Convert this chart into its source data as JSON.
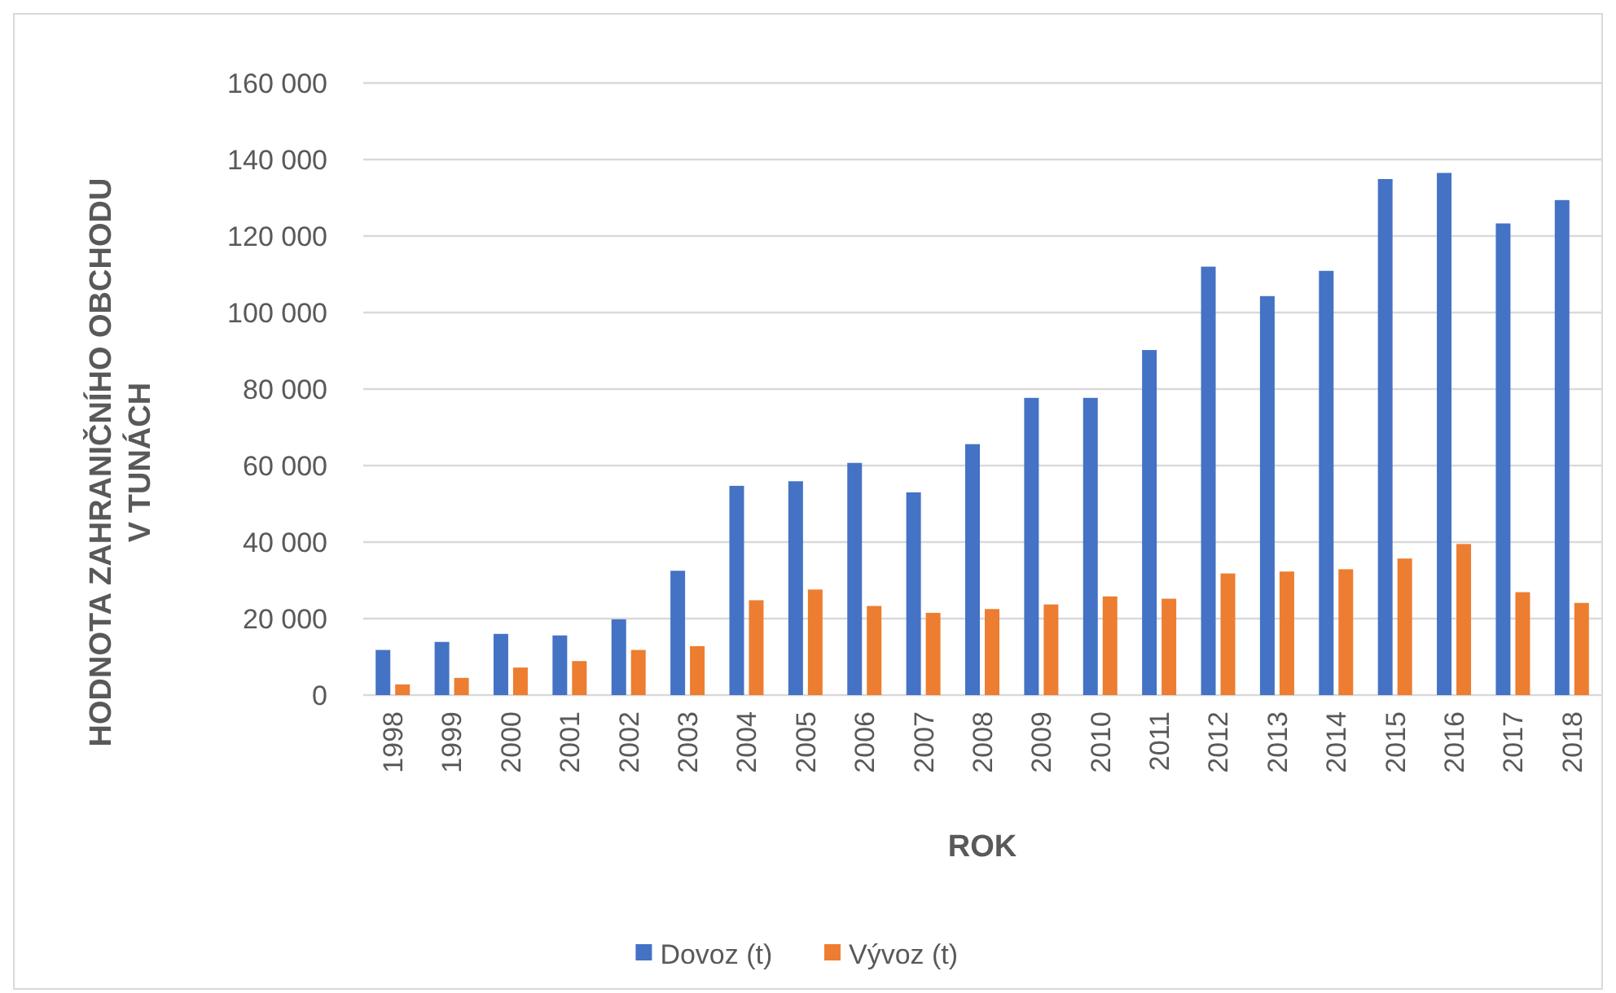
{
  "chart_data": {
    "type": "bar",
    "xlabel": "ROK",
    "ylabel": "HODNOTA ZAHRANIČNÍHO OBCHODU\nV TUNÁCH",
    "categories": [
      "1998",
      "1999",
      "2000",
      "2001",
      "2002",
      "2003",
      "2004",
      "2005",
      "2006",
      "2007",
      "2008",
      "2009",
      "2010",
      "2011",
      "2012",
      "2013",
      "2014",
      "2015",
      "2016",
      "2017",
      "2018"
    ],
    "series": [
      {
        "name": "Dovoz (t)",
        "color": "#4472c4",
        "values": [
          11800,
          13900,
          16000,
          15600,
          19800,
          32500,
          54700,
          55900,
          60700,
          53000,
          65600,
          77700,
          77700,
          90200,
          112000,
          104300,
          110900,
          134900,
          136500,
          123300,
          129400
        ]
      },
      {
        "name": "Vývoz (t)",
        "color": "#ed7d31",
        "values": [
          2800,
          4500,
          7200,
          8900,
          11800,
          12800,
          24800,
          27600,
          23300,
          21500,
          22500,
          23700,
          25800,
          25200,
          31800,
          32300,
          32900,
          35700,
          39500,
          26900,
          24100
        ]
      }
    ],
    "ylim": [
      0,
      160000
    ],
    "yticks": [
      {
        "value": 0,
        "label": "0"
      },
      {
        "value": 20000,
        "label": "20 000"
      },
      {
        "value": 40000,
        "label": "40 000"
      },
      {
        "value": 60000,
        "label": "60 000"
      },
      {
        "value": 80000,
        "label": "80 000"
      },
      {
        "value": 100000,
        "label": "100 000"
      },
      {
        "value": 120000,
        "label": "120 000"
      },
      {
        "value": 140000,
        "label": "140 000"
      },
      {
        "value": 160000,
        "label": "160 000"
      }
    ],
    "grid": "y",
    "legend": "bottom"
  }
}
